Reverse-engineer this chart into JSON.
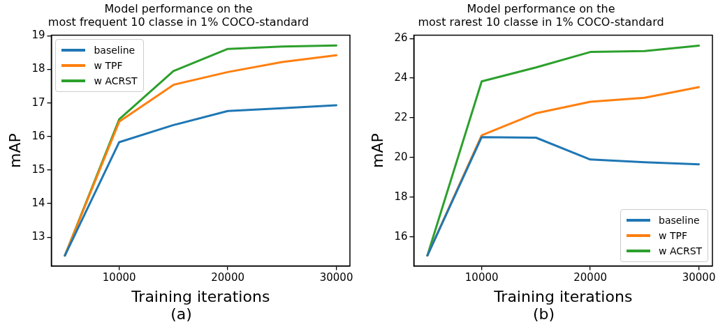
{
  "chart_data": [
    {
      "type": "line",
      "title": "Model performance on the\nmost frequent 10 classe in 1% COCO-standard",
      "xlabel": "Training iterations",
      "ylabel": "mAP",
      "annotations": [
        "(a)"
      ],
      "x": [
        5000,
        10000,
        15000,
        20000,
        25000,
        30000
      ],
      "xlim": [
        3750,
        31250
      ],
      "xticks": [
        10000,
        20000,
        30000
      ],
      "ylim": [
        12.14,
        19.02
      ],
      "yticks": [
        13,
        14,
        15,
        16,
        17,
        18,
        19
      ],
      "grid": false,
      "legend": "top left",
      "marker": "none",
      "line_style": "solid",
      "series": [
        {
          "name": "baseline",
          "color": "#1f77b4",
          "values": [
            12.45,
            15.83,
            16.34,
            16.76,
            16.84,
            16.93
          ]
        },
        {
          "name": "w TPF",
          "color": "#ff7f0e",
          "values": [
            12.45,
            16.44,
            17.54,
            17.92,
            18.22,
            18.42
          ]
        },
        {
          "name": "w ACRST",
          "color": "#2ca02c",
          "values": [
            12.45,
            16.51,
            17.95,
            18.61,
            18.68,
            18.71
          ]
        }
      ]
    },
    {
      "type": "line",
      "title": "Model performance on the\nmost rarest 10 classe in 1% COCO-standard",
      "xlabel": "Training iterations",
      "ylabel": "mAP",
      "annotations": [
        "(b)"
      ],
      "x": [
        5000,
        10000,
        15000,
        20000,
        25000,
        30000
      ],
      "xlim": [
        3750,
        31250
      ],
      "xticks": [
        10000,
        20000,
        30000
      ],
      "ylim": [
        14.53,
        26.17
      ],
      "yticks": [
        16,
        18,
        20,
        22,
        24,
        26
      ],
      "grid": false,
      "legend": "bottom right",
      "marker": "none",
      "line_style": "solid",
      "series": [
        {
          "name": "baseline",
          "color": "#1f77b4",
          "values": [
            15.06,
            21.03,
            21.0,
            19.9,
            19.76,
            19.66
          ]
        },
        {
          "name": "w TPF",
          "color": "#ff7f0e",
          "values": [
            15.06,
            21.12,
            22.23,
            22.81,
            23.01,
            23.55
          ]
        },
        {
          "name": "w ACRST",
          "color": "#2ca02c",
          "values": [
            15.06,
            23.84,
            24.54,
            25.32,
            25.37,
            25.64
          ]
        }
      ]
    }
  ]
}
